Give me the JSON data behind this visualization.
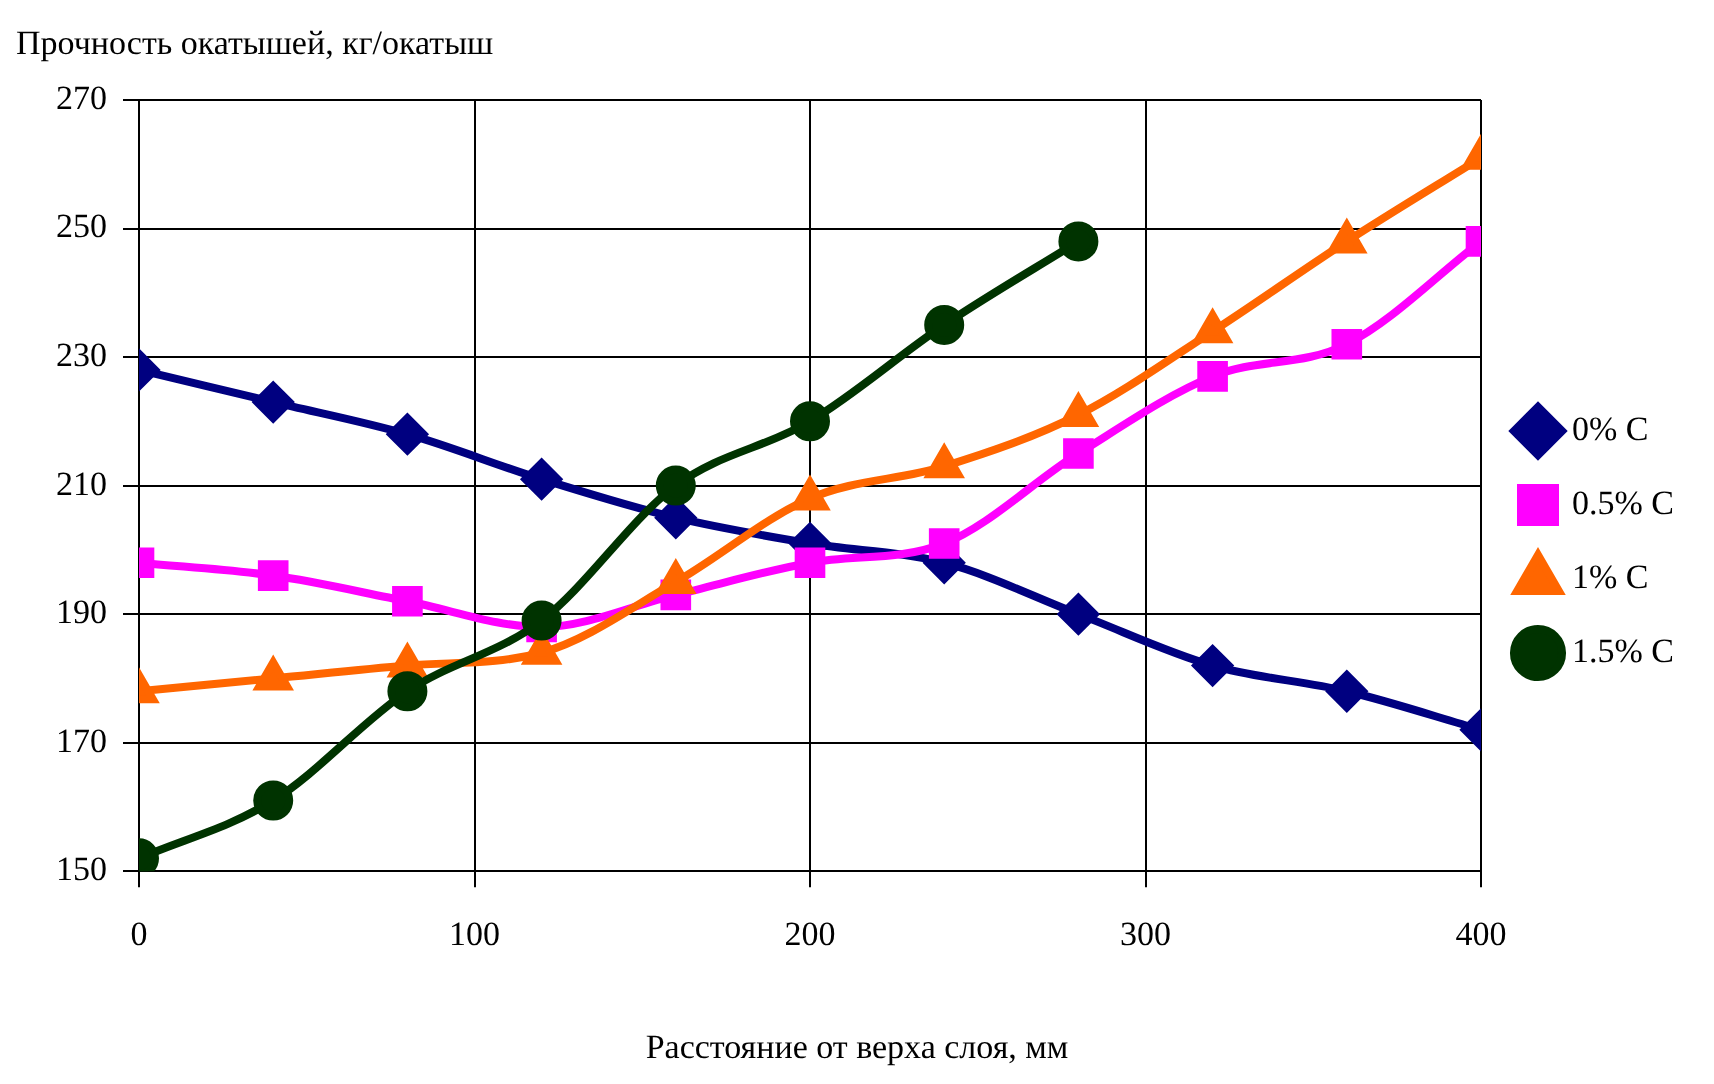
{
  "chart_data": {
    "type": "line",
    "ylabel": "Прочность окатышей, кг/окатыш",
    "xlabel": "Расстояние от верха слоя, мм",
    "x": [
      0,
      40,
      80,
      120,
      160,
      200,
      240,
      280,
      320,
      360,
      400
    ],
    "xlim": [
      0,
      400
    ],
    "xticks": [
      0,
      100,
      200,
      300,
      400
    ],
    "ylim": [
      150,
      270
    ],
    "yticks": [
      150,
      170,
      190,
      210,
      230,
      250,
      270
    ],
    "grid": true,
    "legend": "right",
    "series": [
      {
        "name": "0% C",
        "color": "#000080",
        "marker": "diamond",
        "values": [
          228,
          223,
          218,
          211,
          205,
          201,
          198,
          190,
          182,
          178,
          172
        ]
      },
      {
        "name": "0.5% C",
        "color": "#ff00ff",
        "marker": "square",
        "values": [
          198,
          196,
          192,
          188,
          193,
          198,
          201,
          215,
          227,
          232,
          248
        ]
      },
      {
        "name": "1% C",
        "color": "#ff6600",
        "marker": "triangle",
        "values": [
          178,
          180,
          182,
          184,
          195,
          208,
          213,
          221,
          234,
          248,
          261
        ]
      },
      {
        "name": "1.5% C",
        "color": "#003300",
        "marker": "circle",
        "values": [
          152,
          161,
          178,
          189,
          210,
          220,
          235,
          248,
          null,
          null,
          null
        ]
      }
    ]
  }
}
